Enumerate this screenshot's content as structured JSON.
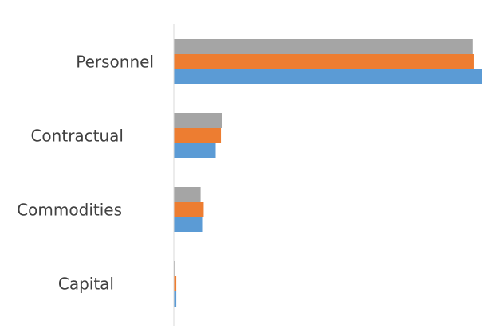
{
  "chart_data": {
    "type": "bar",
    "orientation": "horizontal",
    "categories": [
      "Personnel",
      "Contractual",
      "Commodities",
      "Capital"
    ],
    "series": [
      {
        "values": [
          100,
          13.6,
          9.2,
          0.8
        ],
        "color": "#5B9BD5"
      },
      {
        "values": [
          97.4,
          15.3,
          9.7,
          0.8
        ],
        "color": "#ED7D31"
      },
      {
        "values": [
          97.1,
          15.7,
          8.7,
          0.3
        ],
        "color": "#A5A5A5"
      }
    ],
    "xlim": [
      0,
      100
    ],
    "grid": false,
    "legend": "none",
    "colors": {
      "axis": "#D9D9D9",
      "label": "#404040"
    }
  }
}
